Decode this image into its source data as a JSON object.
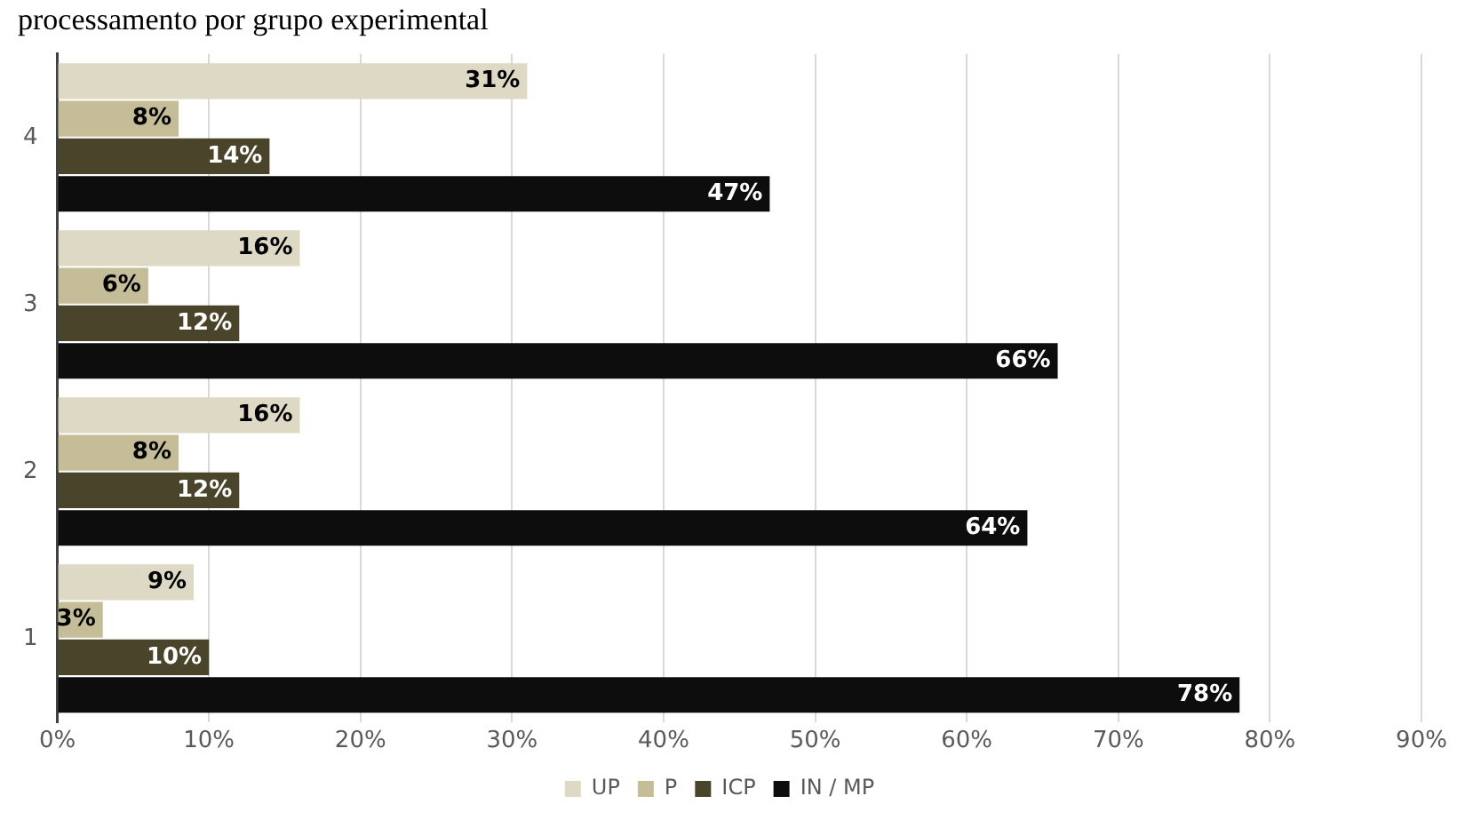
{
  "chart_data": {
    "type": "bar",
    "orientation": "horizontal",
    "title": "processamento por grupo experimental",
    "categories": [
      "4",
      "3",
      "2",
      "1"
    ],
    "series": [
      {
        "name": "UP",
        "color": "#ddd9c4",
        "values": [
          31,
          16,
          16,
          9
        ],
        "value_labels": [
          "31%",
          "16%",
          "16%",
          "9%"
        ]
      },
      {
        "name": "P",
        "color": "#c4bd97",
        "values": [
          8,
          6,
          8,
          3
        ],
        "value_labels": [
          "8%",
          "6%",
          "8%",
          "3%"
        ]
      },
      {
        "name": "ICP",
        "color": "#4a452a",
        "values": [
          14,
          12,
          12,
          10
        ],
        "value_labels": [
          "14%",
          "12%",
          "12%",
          "10%"
        ]
      },
      {
        "name": "IN / MP",
        "color": "#0d0d0d",
        "values": [
          47,
          66,
          64,
          78
        ],
        "value_labels": [
          "47%",
          "66%",
          "64%",
          "78%"
        ]
      }
    ],
    "xlim": [
      0,
      90
    ],
    "xticks": [
      {
        "value": 0,
        "label": "0%"
      },
      {
        "value": 10,
        "label": "10%"
      },
      {
        "value": 20,
        "label": "20%"
      },
      {
        "value": 30,
        "label": "30%"
      },
      {
        "value": 40,
        "label": "40%"
      },
      {
        "value": 50,
        "label": "50%"
      },
      {
        "value": 60,
        "label": "60%"
      },
      {
        "value": 70,
        "label": "70%"
      },
      {
        "value": 80,
        "label": "80%"
      },
      {
        "value": 90,
        "label": "90%"
      }
    ],
    "grid": "x",
    "legend": "bottom"
  }
}
